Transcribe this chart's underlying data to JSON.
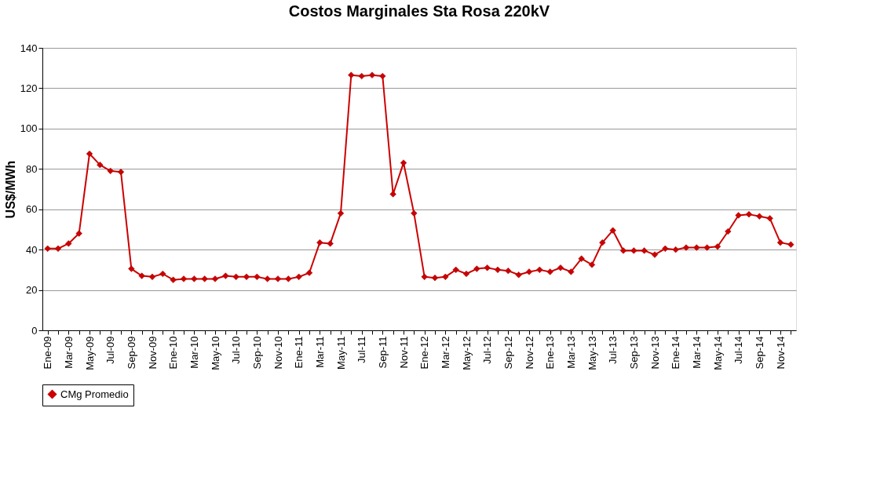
{
  "chart_data": {
    "type": "line",
    "title": "Costos Marginales Sta Rosa 220kV",
    "ylabel": "US$/MWh",
    "categories": [
      "Ene-09",
      null,
      "Mar-09",
      null,
      "May-09",
      null,
      "Jul-09",
      null,
      "Sep-09",
      null,
      "Nov-09",
      null,
      "Ene-10",
      null,
      "Mar-10",
      null,
      "May-10",
      null,
      "Jul-10",
      null,
      "Sep-10",
      null,
      "Nov-10",
      null,
      "Ene-11",
      null,
      "Mar-11",
      null,
      "May-11",
      null,
      "Jul-11",
      null,
      "Sep-11",
      null,
      "Nov-11",
      null,
      "Ene-12",
      null,
      "Mar-12",
      null,
      "May-12",
      null,
      "Jul-12",
      null,
      "Sep-12",
      null,
      "Nov-12",
      null,
      "Ene-13",
      null,
      "Mar-13",
      null,
      "May-13",
      null,
      "Jul-13",
      null,
      "Sep-13",
      null,
      "Nov-13",
      null,
      "Ene-14",
      null,
      "Mar-14",
      null,
      "May-14",
      null,
      "Jul-14",
      null,
      "Sep-14",
      null,
      "Nov-14",
      null
    ],
    "series": [
      {
        "name": "CMg Promedio",
        "color": "#cc0000",
        "values": [
          40.5,
          40.5,
          43,
          48,
          87.5,
          82,
          79,
          78.5,
          30.5,
          27,
          26.5,
          28,
          25,
          25.5,
          25.5,
          25.5,
          25.5,
          27,
          26.5,
          26.5,
          26.5,
          25.5,
          25.5,
          25.5,
          26.5,
          28.5,
          43.5,
          43,
          58,
          126.5,
          126,
          126.5,
          126,
          67.5,
          83,
          58,
          26.5,
          26,
          26.5,
          30,
          28,
          30.5,
          31,
          30,
          29.5,
          27.5,
          29,
          30,
          29,
          31,
          29,
          35.5,
          32.5,
          43.5,
          49.5,
          39.5,
          39.5,
          39.5,
          37.5,
          40.5,
          40,
          41,
          41,
          41,
          41.5,
          49,
          57,
          57.5,
          56.5,
          55.5,
          43.5,
          42.5
        ]
      }
    ],
    "ylim": [
      0,
      140
    ],
    "yticks": [
      0,
      20,
      40,
      60,
      80,
      100,
      120,
      140
    ],
    "grid": "y",
    "legend": "bottom",
    "marker": "diamond",
    "line_style": "solid"
  }
}
